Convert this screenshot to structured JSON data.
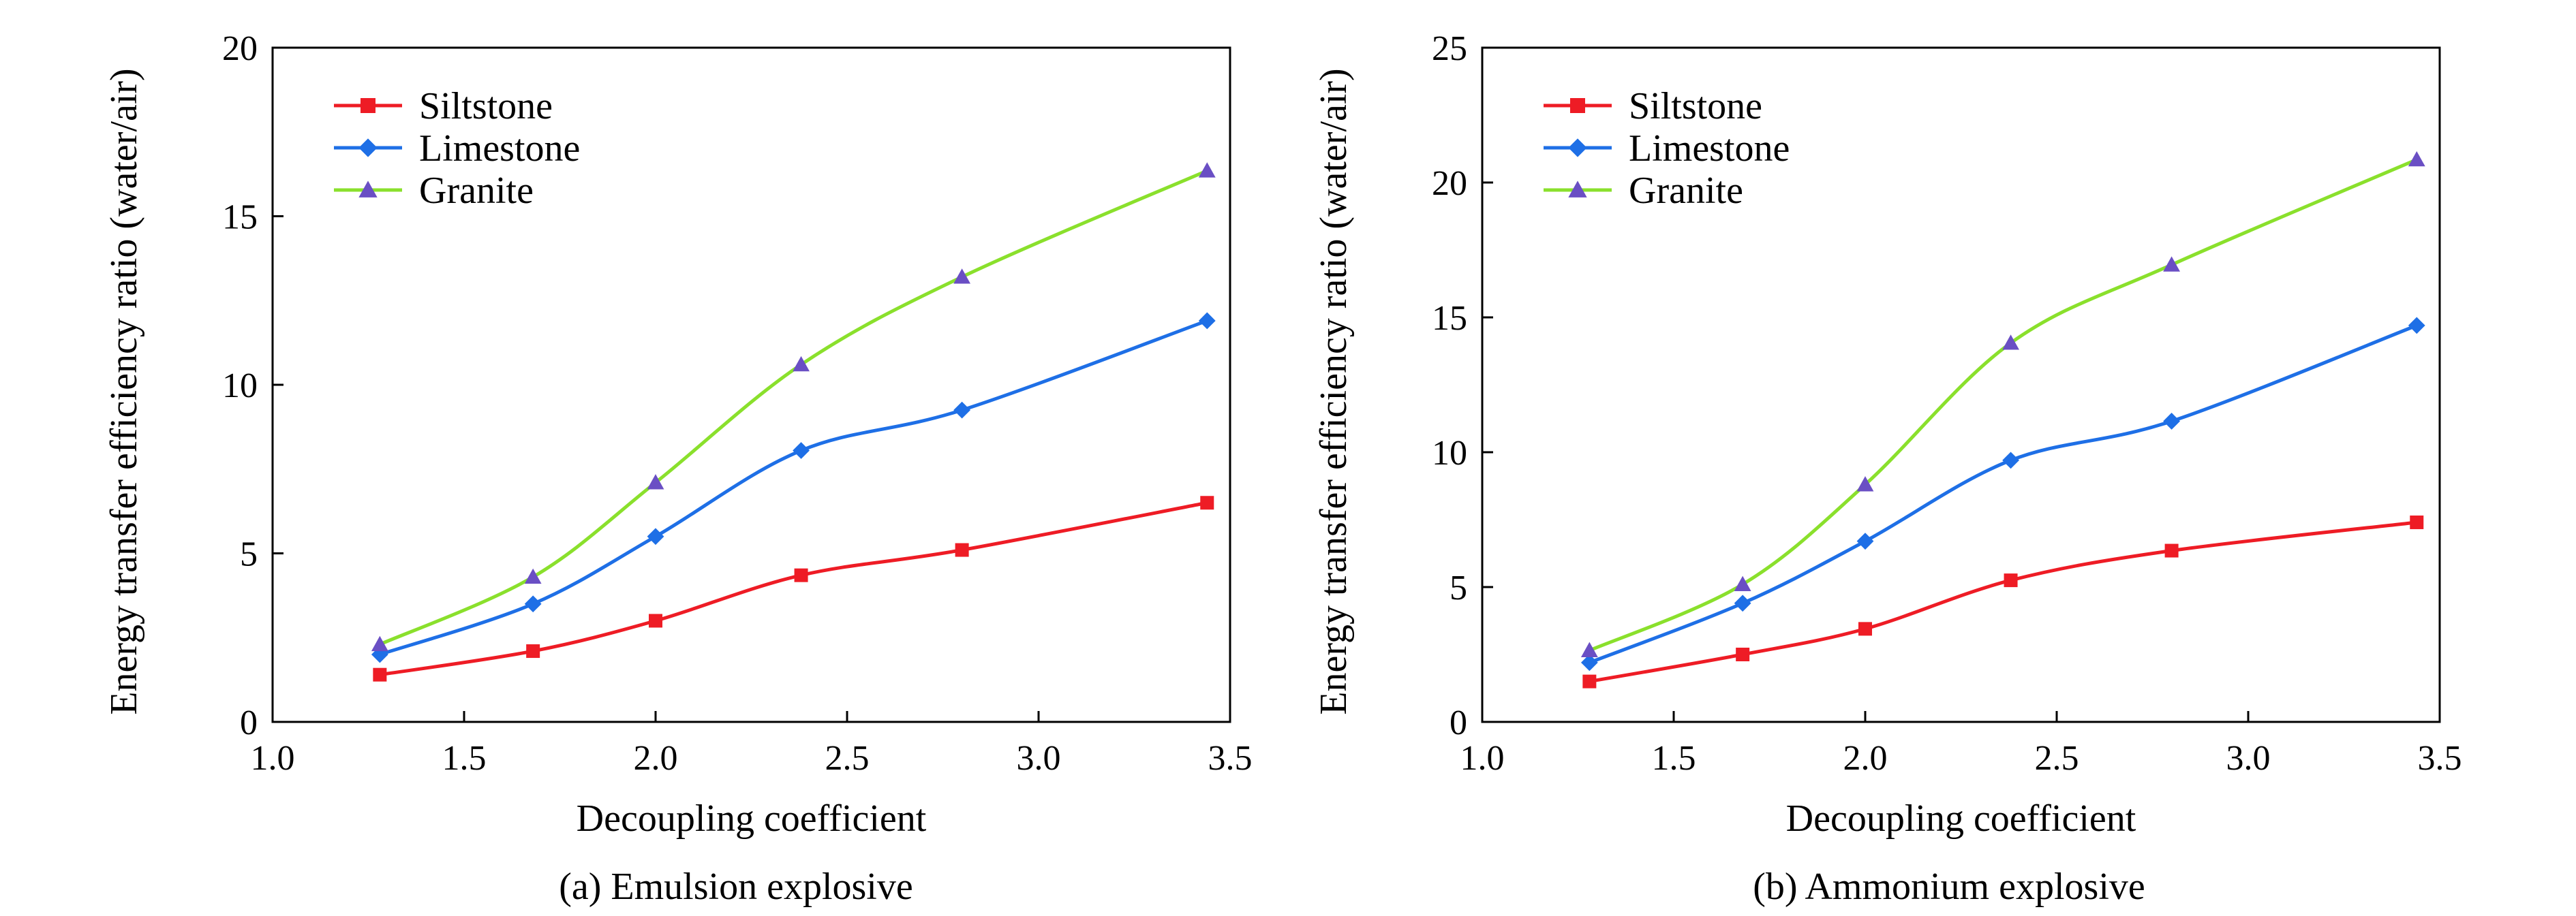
{
  "colors": {
    "Siltstone": "#ee1c25",
    "Limestone": "#1e6fe6",
    "Granite": "#8ae02c",
    "granite_marker": "#6a4fc4",
    "axis": "#000000"
  },
  "chart_data": [
    {
      "type": "line",
      "caption": "(a) Emulsion explosive",
      "xlabel": "Decoupling coefficient",
      "ylabel": "Energy transfer efficiency ratio (water/air)",
      "xlim": [
        1.0,
        3.5
      ],
      "ylim": [
        0,
        20
      ],
      "xticks": [
        1.0,
        1.5,
        2.0,
        2.5,
        3.0,
        3.5
      ],
      "xtick_labels": [
        "1.0",
        "1.5",
        "2.0",
        "2.5",
        "3.0",
        "3.5"
      ],
      "yticks": [
        0,
        5,
        10,
        15,
        20
      ],
      "ytick_labels": [
        "0",
        "5",
        "10",
        "15",
        "20"
      ],
      "grid": false,
      "legend_position": "top-left",
      "x": [
        1.28,
        1.68,
        2.0,
        2.38,
        2.8,
        3.44
      ],
      "series": [
        {
          "name": "Siltstone",
          "marker": "square",
          "values": [
            1.4,
            2.1,
            3.0,
            4.35,
            5.1,
            6.5
          ]
        },
        {
          "name": "Limestone",
          "marker": "diamond",
          "values": [
            2.0,
            3.5,
            5.5,
            8.05,
            9.25,
            11.9
          ]
        },
        {
          "name": "Granite",
          "marker": "triangle",
          "values": [
            2.3,
            4.3,
            7.1,
            10.6,
            13.2,
            16.35
          ]
        }
      ]
    },
    {
      "type": "line",
      "caption": "(b) Ammonium explosive",
      "xlabel": "Decoupling coefficient",
      "ylabel": "Energy transfer efficiency ratio (water/air)",
      "xlim": [
        1.0,
        3.5
      ],
      "ylim": [
        0,
        25
      ],
      "xticks": [
        1.0,
        1.5,
        2.0,
        2.5,
        3.0,
        3.5
      ],
      "xtick_labels": [
        "1.0",
        "1.5",
        "2.0",
        "2.5",
        "3.0",
        "3.5"
      ],
      "yticks": [
        0,
        5,
        10,
        15,
        20,
        25
      ],
      "ytick_labels": [
        "0",
        "5",
        "10",
        "15",
        "20",
        "25"
      ],
      "grid": false,
      "legend_position": "top-left",
      "x": [
        1.28,
        1.68,
        2.0,
        2.38,
        2.8,
        3.44
      ],
      "series": [
        {
          "name": "Siltstone",
          "marker": "square",
          "values": [
            1.5,
            2.5,
            3.45,
            5.25,
            6.35,
            7.4
          ]
        },
        {
          "name": "Limestone",
          "marker": "diamond",
          "values": [
            2.2,
            4.4,
            6.7,
            9.7,
            11.15,
            14.7
          ]
        },
        {
          "name": "Granite",
          "marker": "triangle",
          "values": [
            2.65,
            5.1,
            8.8,
            14.05,
            16.95,
            20.85
          ]
        }
      ]
    }
  ]
}
